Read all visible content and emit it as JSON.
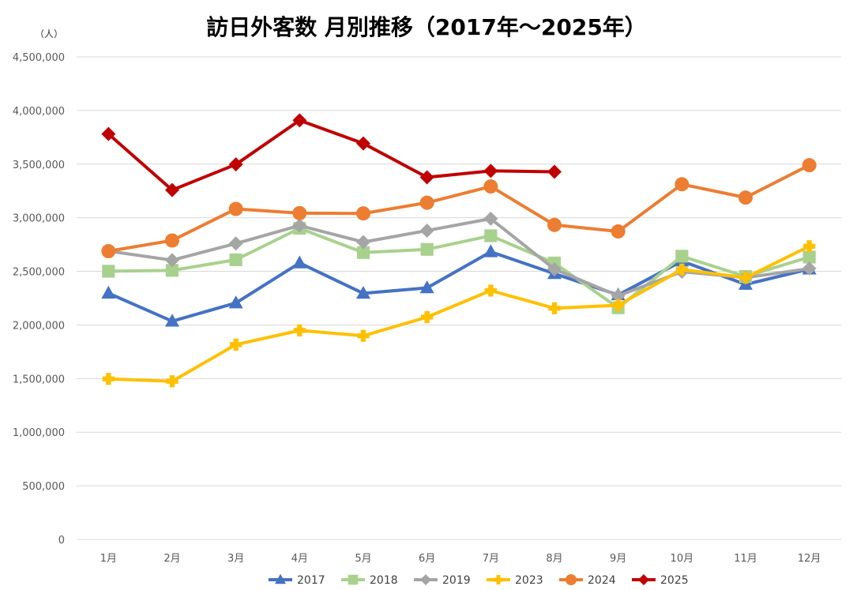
{
  "chart_data": {
    "type": "line",
    "title": "訪日外客数 月別推移（2017年～2025年）",
    "unit_label": "（人）",
    "categories": [
      "1月",
      "2月",
      "3月",
      "4月",
      "5月",
      "6月",
      "7月",
      "8月",
      "9月",
      "10月",
      "11月",
      "12月"
    ],
    "ylim": [
      0,
      4500000
    ],
    "y_ticks": [
      {
        "value": 0,
        "label": "0"
      },
      {
        "value": 500000,
        "label": "500,000"
      },
      {
        "value": 1000000,
        "label": "1,000,000"
      },
      {
        "value": 1500000,
        "label": "1,500,000"
      },
      {
        "value": 2000000,
        "label": "2,000,000"
      },
      {
        "value": 2500000,
        "label": "2,500,000"
      },
      {
        "value": 3000000,
        "label": "3,000,000"
      },
      {
        "value": 3500000,
        "label": "3,500,000"
      },
      {
        "value": 4000000,
        "label": "4,000,000"
      },
      {
        "value": 4500000,
        "label": "4,500,000"
      }
    ],
    "grid": true,
    "legend_position": "bottom",
    "series": [
      {
        "name": "2017",
        "color": "#4472c4",
        "marker": "triangle",
        "values": [
          2296000,
          2035000,
          2205000,
          2578000,
          2295000,
          2346000,
          2682000,
          2478000,
          2280000,
          2595000,
          2378000,
          2521000
        ]
      },
      {
        "name": "2018",
        "color": "#a9d18e",
        "marker": "square",
        "values": [
          2501000,
          2509000,
          2608000,
          2901000,
          2675000,
          2705000,
          2832000,
          2578000,
          2160000,
          2641000,
          2452000,
          2633000
        ]
      },
      {
        "name": "2019",
        "color": "#a5a5a5",
        "marker": "diamond",
        "values": [
          2689000,
          2604000,
          2760000,
          2927000,
          2773000,
          2880000,
          2991000,
          2520000,
          2272000,
          2497000,
          2441000,
          2526000
        ]
      },
      {
        "name": "2023",
        "color": "#ffc000",
        "marker": "cross",
        "values": [
          1497000,
          1475000,
          1817000,
          1949000,
          1899000,
          2073000,
          2321000,
          2156000,
          2184000,
          2517000,
          2441000,
          2734000
        ]
      },
      {
        "name": "2024",
        "color": "#ed7d31",
        "marker": "circle",
        "values": [
          2688000,
          2788000,
          3082000,
          3043000,
          3040000,
          3140000,
          3292000,
          2933000,
          2872000,
          3312000,
          3188000,
          3490000
        ]
      },
      {
        "name": "2025",
        "color": "#c00000",
        "marker": "diamond",
        "values": [
          3781000,
          3258000,
          3497000,
          3908000,
          3693000,
          3377000,
          3437000,
          3428000,
          null,
          null,
          null,
          null
        ]
      }
    ]
  }
}
